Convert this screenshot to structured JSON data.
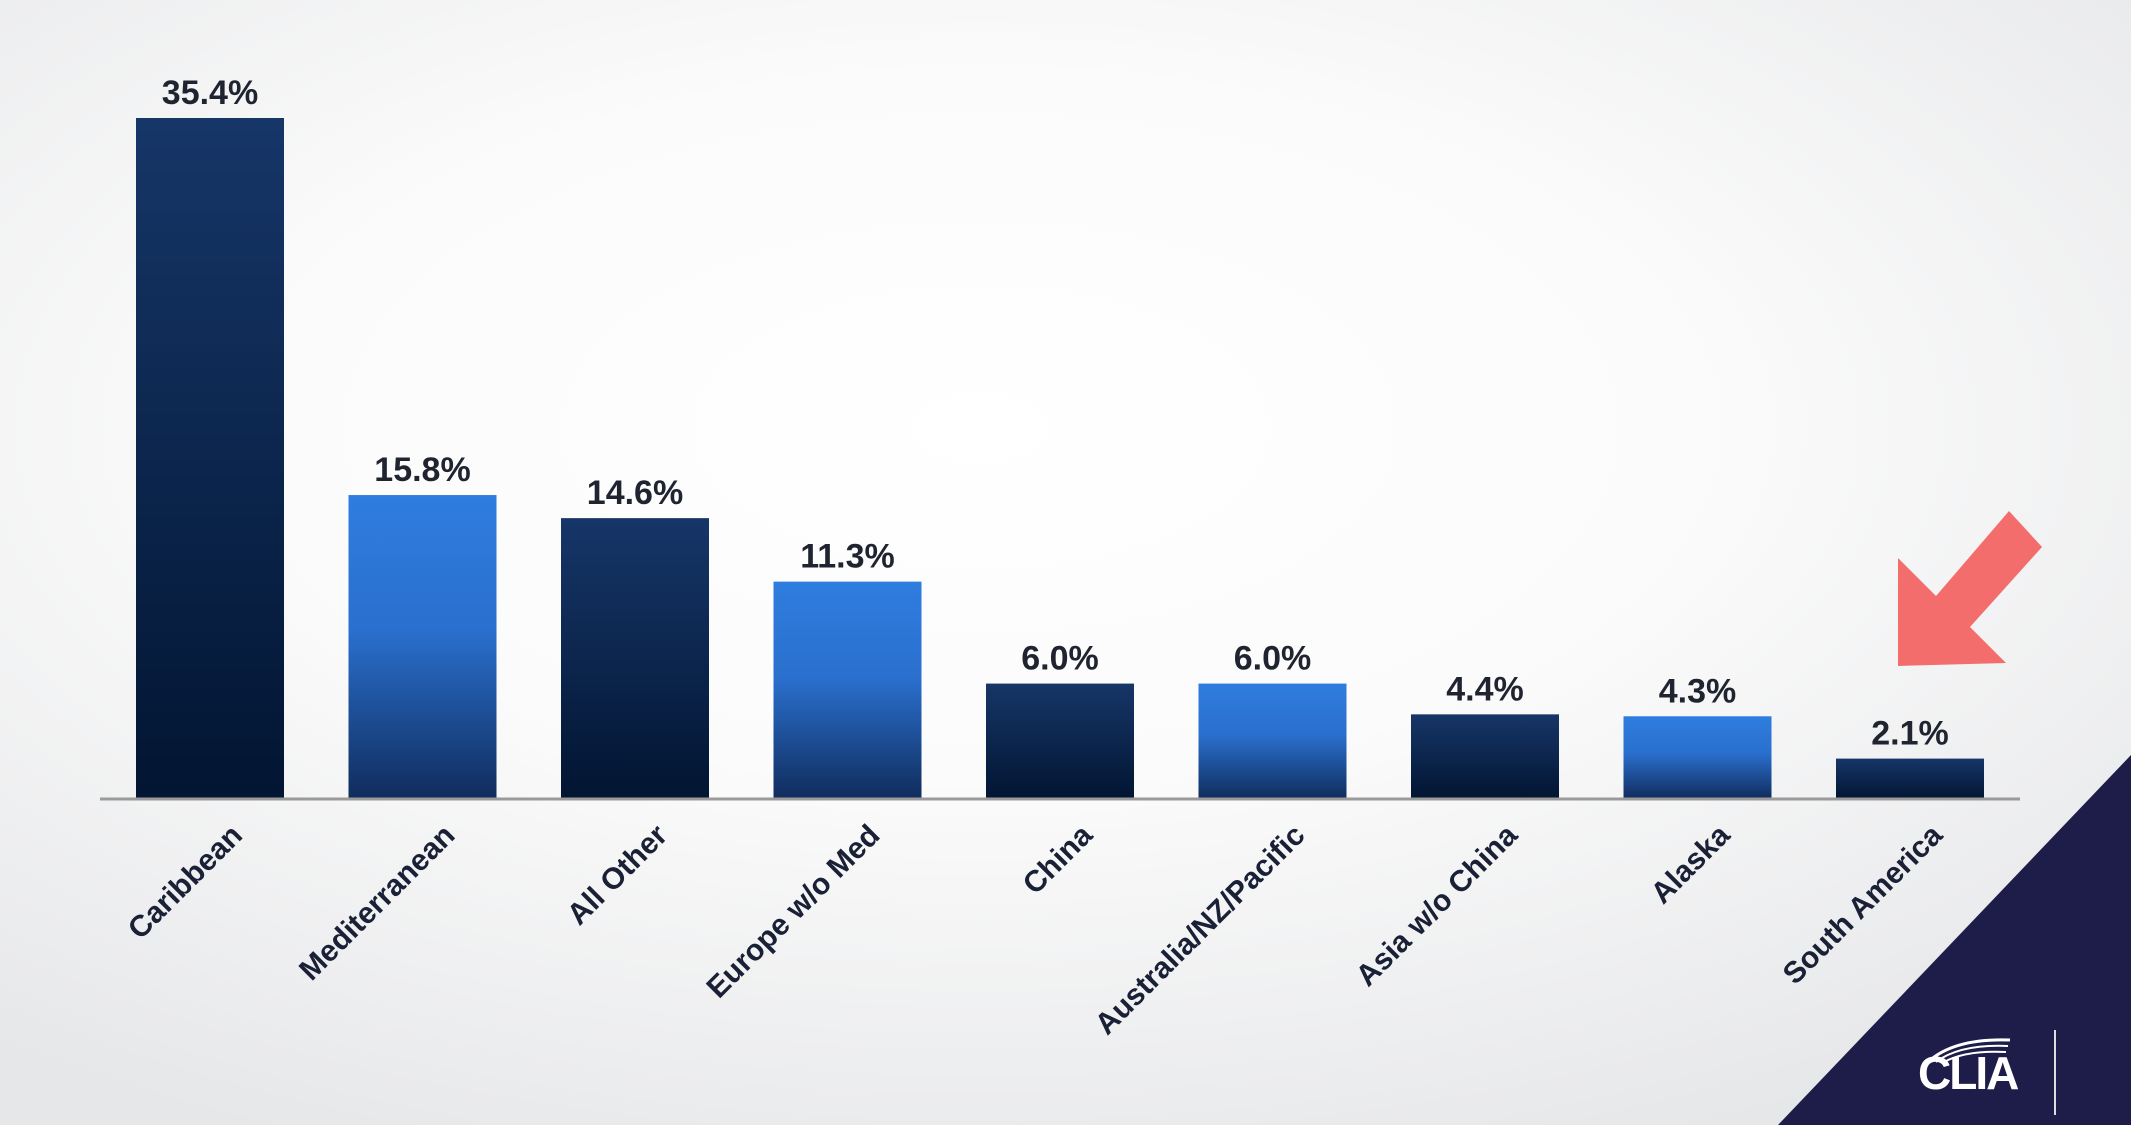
{
  "chart_data": {
    "type": "bar",
    "categories": [
      "Caribbean",
      "Mediterranean",
      "All Other",
      "Europe w/o Med",
      "China",
      "Australia/NZ/Pacific",
      "Asia w/o China",
      "Alaska",
      "South America"
    ],
    "values": [
      35.4,
      15.8,
      14.6,
      11.3,
      6.0,
      6.0,
      4.4,
      4.3,
      2.1
    ],
    "value_labels": [
      "35.4%",
      "15.8%",
      "14.6%",
      "11.3%",
      "6.0%",
      "6.0%",
      "4.4%",
      "4.3%",
      "2.1%"
    ],
    "title": "",
    "xlabel": "",
    "ylabel": "",
    "ylim": [
      0,
      35.4
    ],
    "grid": false,
    "legend": "none",
    "colors": {
      "dark_series_top": "#163668",
      "dark_series_bottom": "#021532",
      "light_series_top": "#2f7de0",
      "light_series_bottom": "#102c5c",
      "axis": "#9a9a9a",
      "annotation_arrow": "#f46d6d",
      "corner": "#1e1c48"
    },
    "annotations": [
      {
        "type": "arrow",
        "points_to": "South America",
        "color": "#f46d6d"
      }
    ]
  },
  "branding": {
    "logo_text": "CLIA"
  }
}
